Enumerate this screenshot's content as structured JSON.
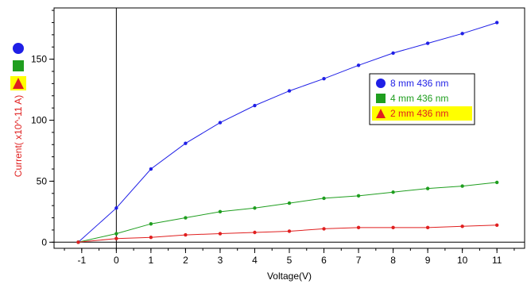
{
  "chart_data": {
    "type": "line",
    "xlabel": "Voltage(V)",
    "ylabel": "Current( x10^-11 A)",
    "xlim": [
      -1.8,
      11.8
    ],
    "ylim": [
      -5,
      192
    ],
    "x_ticks": [
      -1,
      0,
      1,
      2,
      3,
      4,
      5,
      6,
      7,
      8,
      9,
      10,
      11
    ],
    "y_ticks": [
      0,
      50,
      100,
      150
    ],
    "x_minor_step": 0.5,
    "y_minor_step": 10,
    "zero_axes": true,
    "grid": false,
    "legend_position": "right",
    "series": [
      {
        "name": "8 mm 436 nm",
        "color": "#1f1fe6",
        "marker": "circle",
        "highlight": false,
        "x": [
          -1.1,
          0,
          1,
          2,
          3,
          4,
          5,
          6,
          7,
          8,
          9,
          10,
          11
        ],
        "y": [
          0,
          28,
          60,
          81,
          98,
          112,
          124,
          134,
          145,
          155,
          163,
          171,
          180
        ]
      },
      {
        "name": "4 mm 436 nm",
        "color": "#1f9e1f",
        "marker": "square",
        "highlight": false,
        "x": [
          -1.1,
          0,
          1,
          2,
          3,
          4,
          5,
          6,
          7,
          8,
          9,
          10,
          11
        ],
        "y": [
          0,
          7,
          15,
          20,
          25,
          28,
          32,
          36,
          38,
          41,
          44,
          46,
          49
        ]
      },
      {
        "name": "2 mm 436 nm",
        "color": "#e01f1f",
        "marker": "triangle",
        "highlight": true,
        "highlight_color": "#ffff00",
        "x": [
          -1.1,
          0,
          1,
          2,
          3,
          4,
          5,
          6,
          7,
          8,
          9,
          10,
          11
        ],
        "y": [
          0,
          3,
          4,
          6,
          7,
          8,
          9,
          11,
          12,
          12,
          12,
          13,
          14
        ]
      }
    ],
    "ylabel_color": "#e01f1f"
  }
}
